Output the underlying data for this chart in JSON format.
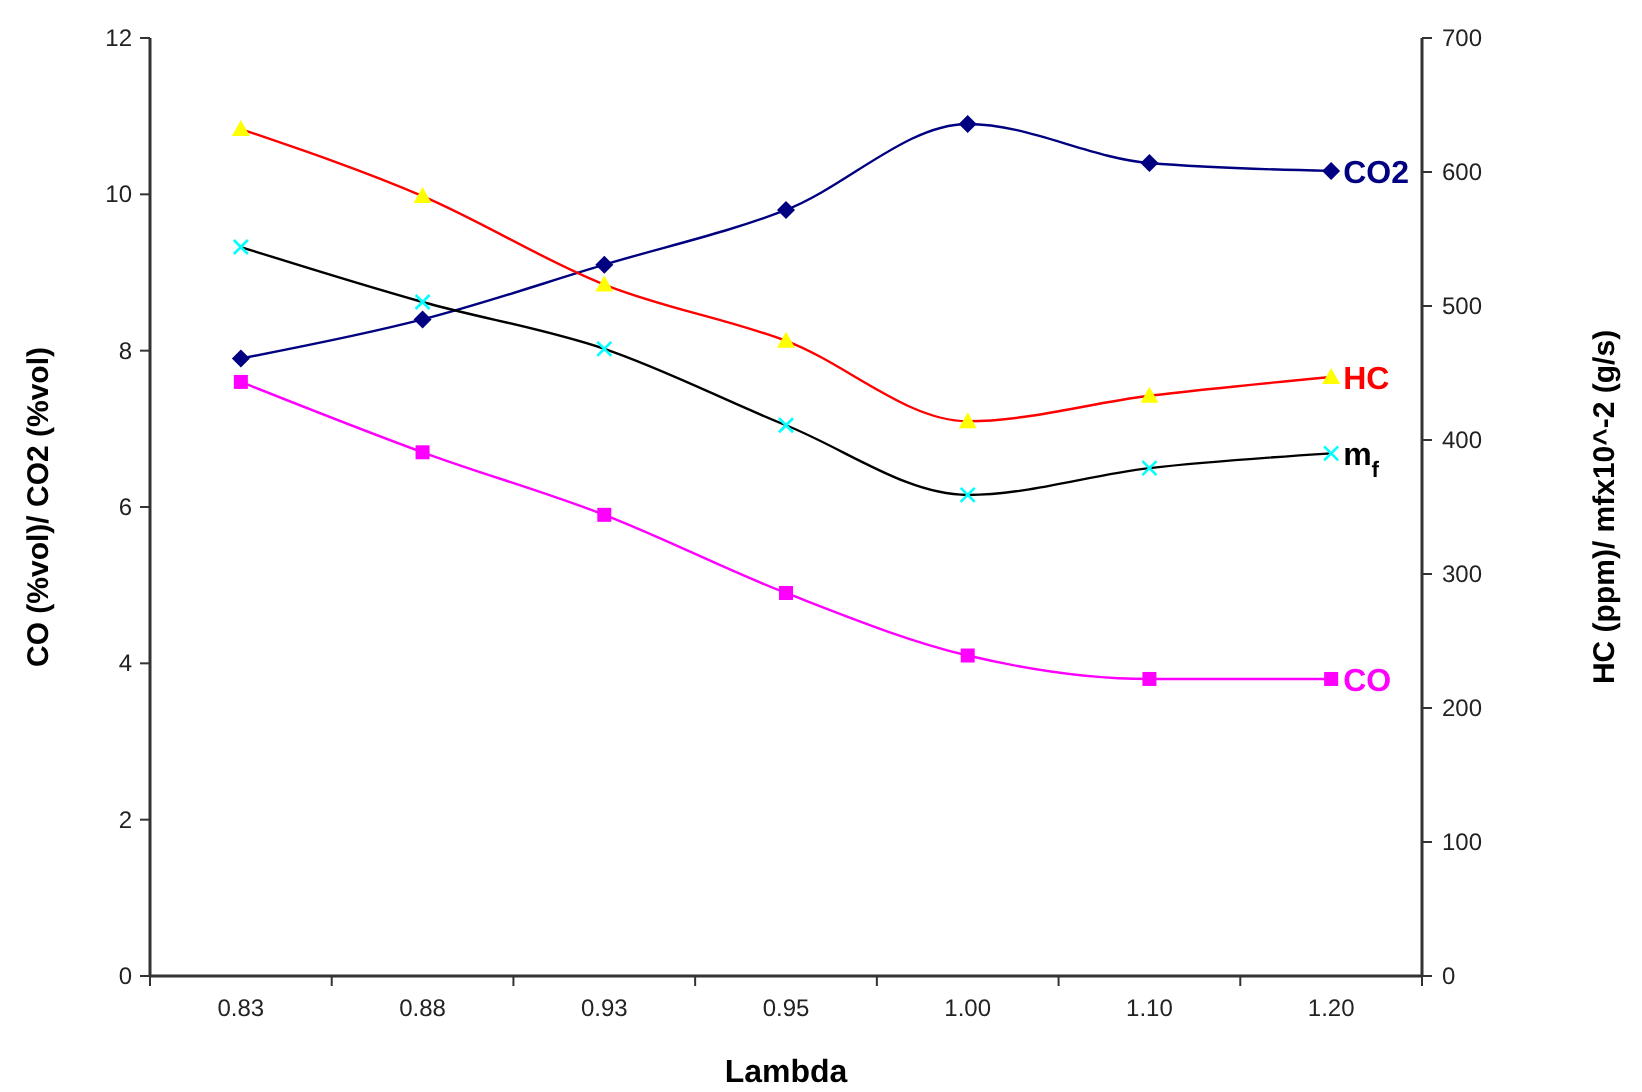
{
  "chart_data": {
    "type": "line",
    "xlabel": "Lambda",
    "ylabel": "CO (%vol)/ CO2 (%vol)",
    "y2label": "HC (ppm)/ mfx10^-2 (g/s)",
    "categories": [
      "0.83",
      "0.88",
      "0.93",
      "0.95",
      "1.00",
      "1.10",
      "1.20"
    ],
    "series": [
      {
        "name": "CO2",
        "color": "#000080",
        "marker": "diamond",
        "values": [
          7.9,
          8.4,
          9.1,
          9.8,
          10.9,
          10.4,
          10.3
        ]
      },
      {
        "name": "HC",
        "color": "#ff0000",
        "colors": [
          "#ffff00",
          "#ffff00",
          "#ffff00",
          "#ffff00",
          "#ffff00",
          "#ffff00",
          "#ffff00"
        ],
        "marker": "triangle",
        "axis": "y2",
        "values": [
          632,
          582,
          516,
          474,
          414,
          433,
          447
        ]
      },
      {
        "name": "m$_{f}$",
        "color": "#000000",
        "colors": [
          "#00ffff",
          "#00ffff",
          "#00ffff",
          "#00ffff",
          "#00ffff",
          "#00ffff",
          "#00ffff"
        ],
        "marker": "cross",
        "axis": "y2",
        "values": [
          544,
          503,
          468,
          411,
          359,
          379,
          390
        ]
      },
      {
        "name": "CO",
        "color": "#ff00ff",
        "marker": "square",
        "values": [
          7.6,
          6.7,
          5.9,
          4.9,
          4.1,
          3.8,
          3.8
        ]
      }
    ],
    "ylim": [
      0,
      12
    ],
    "yticks": [
      0,
      2,
      4,
      6,
      8,
      10,
      12
    ],
    "y2lim": [
      0,
      700
    ],
    "y2ticks": [
      0,
      100,
      200,
      300,
      400,
      500,
      600,
      700
    ],
    "grid": false
  }
}
